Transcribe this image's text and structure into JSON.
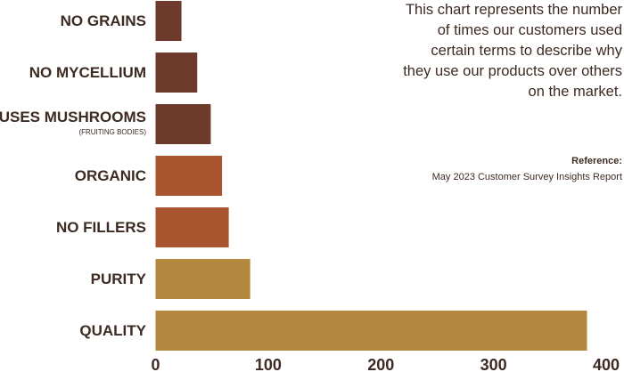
{
  "chart_data": {
    "type": "bar",
    "orientation": "horizontal",
    "categories": [
      "NO GRAINS",
      "NO MYCELLIUM",
      "USES MUSHROOMS",
      "ORGANIC",
      "NO FILLERS",
      "PURITY",
      "QUALITY"
    ],
    "category_sublabels": {
      "USES MUSHROOMS": "(FRUITING BODIES)"
    },
    "values": [
      23,
      37,
      49,
      59,
      65,
      84,
      383
    ],
    "colors": [
      "#6e3a2c",
      "#6e3a2c",
      "#6e3a2c",
      "#a85530",
      "#a85530",
      "#b5883f",
      "#b5883f"
    ],
    "xlim": [
      0,
      400
    ],
    "xticks": [
      "0",
      "100",
      "200",
      "300",
      "400"
    ],
    "grid": false,
    "title": "",
    "xlabel": "",
    "ylabel": ""
  },
  "annotation": {
    "text": "This chart represents the number of times our customers used certain terms to describe why they use our products over others on the market.",
    "reference_label": "Reference:",
    "reference_source": "May 2023 Customer Survey Insights Report"
  }
}
